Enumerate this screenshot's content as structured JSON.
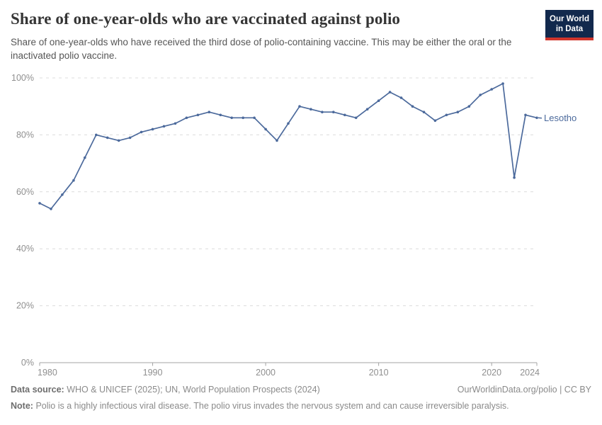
{
  "header": {
    "title": "Share of one-year-olds who are vaccinated against polio",
    "subtitle": "Share of one-year-olds who have received the third dose of polio-containing vaccine. This may be either the oral or the inactivated polio vaccine.",
    "logo": {
      "line1": "Our World",
      "line2": "in Data",
      "bg_color": "#12294D",
      "stripe_color": "#D0352C"
    }
  },
  "chart_data": {
    "type": "line",
    "title": "Share of one-year-olds who are vaccinated against polio",
    "xlabel": "",
    "ylabel": "",
    "ylim": [
      0,
      100
    ],
    "grid": "horizontal-dashed",
    "legend_position": "end-of-line",
    "yticks": [
      "0%",
      "20%",
      "40%",
      "60%",
      "80%",
      "100%"
    ],
    "ytick_values": [
      0,
      20,
      40,
      60,
      80,
      100
    ],
    "xticks": [
      1980,
      1990,
      2000,
      2010,
      2020,
      2024
    ],
    "line_color": "#4C6A9C",
    "axis_color": "#a3a3a3",
    "grid_color": "#dcdcdc",
    "tick_label_color": "#8f8f8f",
    "series": [
      {
        "name": "Lesotho",
        "x": [
          1980,
          1981,
          1982,
          1983,
          1984,
          1985,
          1986,
          1987,
          1988,
          1989,
          1990,
          1991,
          1992,
          1993,
          1994,
          1995,
          1996,
          1997,
          1998,
          1999,
          2000,
          2001,
          2002,
          2003,
          2004,
          2005,
          2006,
          2007,
          2008,
          2009,
          2010,
          2011,
          2012,
          2013,
          2014,
          2015,
          2016,
          2017,
          2018,
          2019,
          2020,
          2021,
          2022,
          2023,
          2024
        ],
        "values": [
          56,
          54,
          59,
          64,
          72,
          80,
          79,
          78,
          79,
          81,
          82,
          83,
          84,
          86,
          87,
          88,
          87,
          86,
          86,
          86,
          82,
          78,
          84,
          90,
          89,
          88,
          88,
          87,
          86,
          89,
          92,
          95,
          93,
          90,
          88,
          85,
          87,
          88,
          90,
          94,
          96,
          98,
          65,
          87,
          86
        ]
      }
    ]
  },
  "footer": {
    "data_source_label": "Data source:",
    "data_source_text": "WHO & UNICEF (2025); UN, World Population Prospects (2024)",
    "attribution": "OurWorldinData.org/polio | CC BY",
    "note_label": "Note:",
    "note_text": "Polio is a highly infectious viral disease. The polio virus invades the nervous system and can cause irreversible paralysis."
  }
}
